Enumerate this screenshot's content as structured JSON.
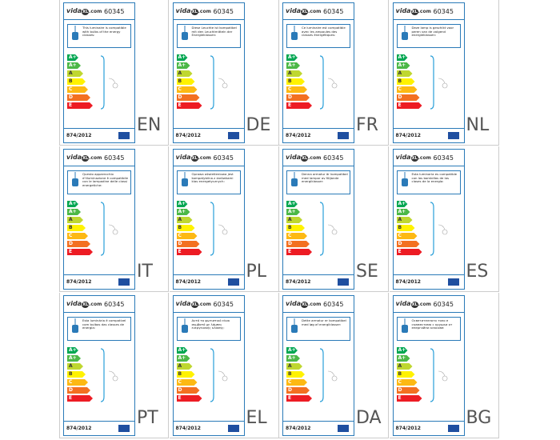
{
  "logo": {
    "pre": "vida",
    "mark": "XL",
    "post": ".com"
  },
  "model": "60345",
  "regulation": "874/2012",
  "classes": [
    "A++",
    "A+",
    "A",
    "B",
    "C",
    "D",
    "E"
  ],
  "labels": [
    {
      "code": "EN",
      "text": "This luminaire is compatible with bulbs of the energy classes:"
    },
    {
      "code": "DE",
      "text": "Diese Leuchte ist kompatibel mit den Leuchtmitteln der Energieklassen:"
    },
    {
      "code": "FR",
      "text": "Ce luminaire est compatible avec les ampoules des classes énergétiques:"
    },
    {
      "code": "NL",
      "text": "Deze lamp is geschikt voor peren van de volgend energieklassen:"
    },
    {
      "code": "IT",
      "text": "Questo apparecchio d'illuminazione è compatibile con le lampadine delle classi energetiche:"
    },
    {
      "code": "PL",
      "text": "Oprawa oświetleniowa jest kompatybilna z żarówkami klas energetycznych:"
    },
    {
      "code": "SE",
      "text": "Denna armatur är kompatibel med lampor av följande energiklasser:"
    },
    {
      "code": "ES",
      "text": "Esta luminaria es compatible con las bombillas de las clases de la energía:"
    },
    {
      "code": "PT",
      "text": "Esta luminária é compatível com bulbos das classes de energia:"
    },
    {
      "code": "EL",
      "text": "Αυτό το φωτιστικό είναι συμβατό με λάμπες ενεργειακής κλάσης:"
    },
    {
      "code": "DA",
      "text": "Dette armatur er kompatibel med løg af energiklasser:"
    },
    {
      "code": "BG",
      "text": "Осветителното тяло е съвместимо с крушки от енергийни класове:"
    }
  ]
}
